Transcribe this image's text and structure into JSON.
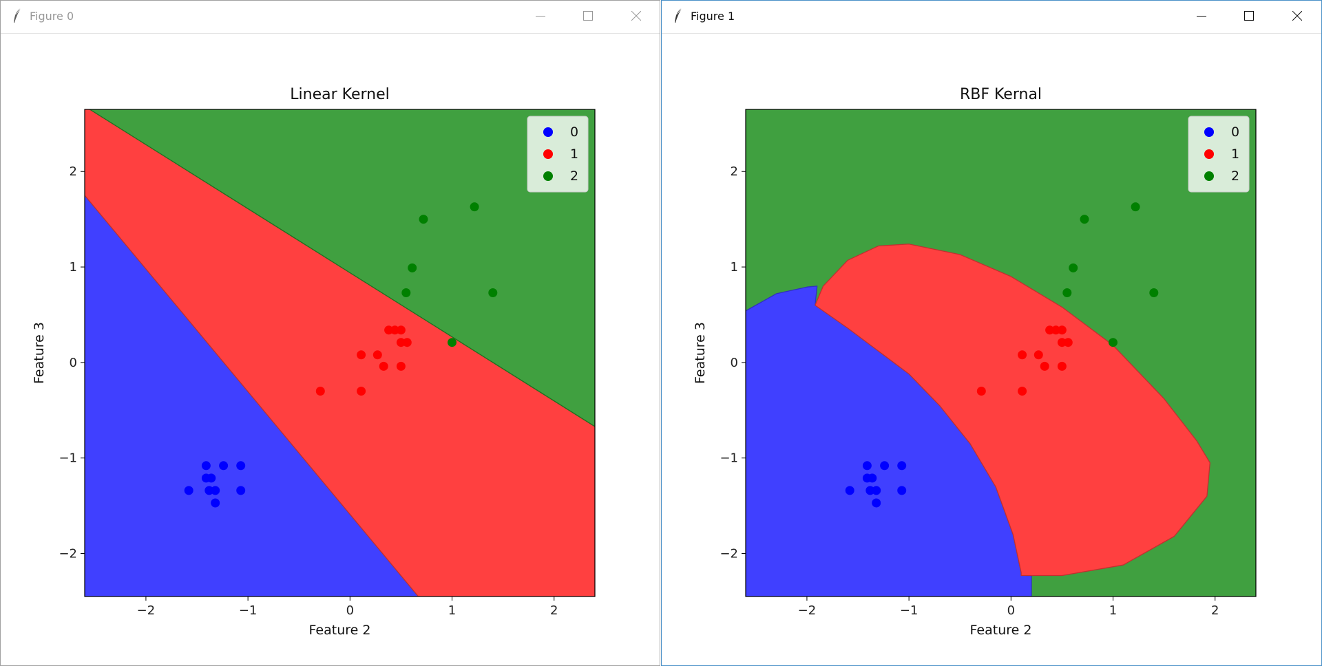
{
  "windows": [
    {
      "title": "Figure 0",
      "active": false,
      "chart_data": {
        "type": "scatter",
        "title": "Linear Kernel",
        "xlabel": "Feature 2",
        "ylabel": "Feature 3",
        "xlim": [
          -2.6,
          2.4
        ],
        "ylim": [
          -2.45,
          2.65
        ],
        "xticks": [
          -2,
          -1,
          0,
          1,
          2
        ],
        "yticks": [
          -2,
          -1,
          0,
          1,
          2
        ],
        "xtick_labels": [
          "−2",
          "−1",
          "0",
          "1",
          "2"
        ],
        "ytick_labels": [
          "−2",
          "−1",
          "0",
          "1",
          "2"
        ],
        "legend_position": "top-right",
        "regions": [
          {
            "class": "0",
            "color": "#4040ff",
            "polygon": [
              [
                -2.6,
                1.75
              ],
              [
                0.67,
                -2.45
              ],
              [
                -2.6,
                -2.45
              ]
            ]
          },
          {
            "class": "1",
            "color": "#ff4040",
            "polygon": [
              [
                -2.6,
                2.65
              ],
              [
                -2.55,
                2.65
              ],
              [
                2.4,
                -0.67
              ],
              [
                2.4,
                -2.45
              ],
              [
                0.67,
                -2.45
              ],
              [
                -2.6,
                1.75
              ]
            ]
          },
          {
            "class": "2",
            "color": "#40a040",
            "polygon": [
              [
                -2.55,
                2.65
              ],
              [
                2.4,
                2.65
              ],
              [
                2.4,
                -0.67
              ]
            ]
          }
        ],
        "series": [
          {
            "name": "0",
            "color": "#0000ff",
            "points": [
              [
                -1.41,
                -1.08
              ],
              [
                -1.24,
                -1.08
              ],
              [
                -1.07,
                -1.08
              ],
              [
                -1.41,
                -1.21
              ],
              [
                -1.36,
                -1.21
              ],
              [
                -1.58,
                -1.34
              ],
              [
                -1.38,
                -1.34
              ],
              [
                -1.32,
                -1.34
              ],
              [
                -1.07,
                -1.34
              ],
              [
                -1.32,
                -1.47
              ]
            ]
          },
          {
            "name": "1",
            "color": "#ff0000",
            "points": [
              [
                0.38,
                0.34
              ],
              [
                0.44,
                0.34
              ],
              [
                0.5,
                0.34
              ],
              [
                0.5,
                0.21
              ],
              [
                0.56,
                0.21
              ],
              [
                0.11,
                0.08
              ],
              [
                0.27,
                0.08
              ],
              [
                0.33,
                -0.04
              ],
              [
                0.5,
                -0.04
              ],
              [
                -0.29,
                -0.3
              ],
              [
                0.11,
                -0.3
              ]
            ]
          },
          {
            "name": "2",
            "color": "#008000",
            "points": [
              [
                1.22,
                1.63
              ],
              [
                0.72,
                1.5
              ],
              [
                0.61,
                0.99
              ],
              [
                0.55,
                0.73
              ],
              [
                1.4,
                0.73
              ],
              [
                1.0,
                0.21
              ]
            ]
          }
        ]
      }
    },
    {
      "title": "Figure 1",
      "active": true,
      "chart_data": {
        "type": "scatter",
        "title": "RBF Kernal",
        "xlabel": "Feature 2",
        "ylabel": "Feature 3",
        "xlim": [
          -2.6,
          2.4
        ],
        "ylim": [
          -2.45,
          2.65
        ],
        "xticks": [
          -2,
          -1,
          0,
          1,
          2
        ],
        "yticks": [
          -2,
          -1,
          0,
          1,
          2
        ],
        "xtick_labels": [
          "−2",
          "−1",
          "0",
          "1",
          "2"
        ],
        "ytick_labels": [
          "−2",
          "−1",
          "0",
          "1",
          "2"
        ],
        "legend_position": "top-right",
        "regions": [
          {
            "class": "2",
            "color": "#40a040",
            "polygon": [
              [
                -2.6,
                2.65
              ],
              [
                2.4,
                2.65
              ],
              [
                2.4,
                -2.45
              ],
              [
                -2.6,
                -2.45
              ]
            ]
          },
          {
            "class": "0",
            "color": "#4040ff",
            "polygon": [
              [
                -2.6,
                0.54
              ],
              [
                -2.3,
                0.72
              ],
              [
                -2.0,
                0.79
              ],
              [
                -1.9,
                0.8
              ],
              [
                -1.92,
                0.6
              ],
              [
                -1.6,
                0.36
              ],
              [
                -1.3,
                0.12
              ],
              [
                -1.0,
                -0.12
              ],
              [
                -0.7,
                -0.45
              ],
              [
                -0.4,
                -0.85
              ],
              [
                -0.15,
                -1.3
              ],
              [
                0.02,
                -1.8
              ],
              [
                0.1,
                -2.2
              ],
              [
                0.15,
                -2.23
              ],
              [
                0.2,
                -2.23
              ],
              [
                0.2,
                -2.45
              ],
              [
                -2.6,
                -2.45
              ]
            ]
          },
          {
            "class": "1",
            "color": "#ff4040",
            "polygon": [
              [
                -1.92,
                0.6
              ],
              [
                -1.84,
                0.8
              ],
              [
                -1.6,
                1.07
              ],
              [
                -1.3,
                1.22
              ],
              [
                -1.0,
                1.24
              ],
              [
                -0.5,
                1.13
              ],
              [
                0.0,
                0.9
              ],
              [
                0.5,
                0.58
              ],
              [
                1.0,
                0.18
              ],
              [
                1.5,
                -0.38
              ],
              [
                1.82,
                -0.82
              ],
              [
                1.95,
                -1.05
              ],
              [
                1.92,
                -1.4
              ],
              [
                1.6,
                -1.82
              ],
              [
                1.1,
                -2.12
              ],
              [
                0.5,
                -2.23
              ],
              [
                0.1,
                -2.23
              ],
              [
                0.1,
                -2.2
              ],
              [
                0.02,
                -1.8
              ],
              [
                -0.15,
                -1.3
              ],
              [
                -0.4,
                -0.85
              ],
              [
                -0.7,
                -0.45
              ],
              [
                -1.0,
                -0.12
              ],
              [
                -1.3,
                0.12
              ],
              [
                -1.6,
                0.36
              ]
            ]
          }
        ],
        "series": [
          {
            "name": "0",
            "color": "#0000ff",
            "points": [
              [
                -1.41,
                -1.08
              ],
              [
                -1.24,
                -1.08
              ],
              [
                -1.07,
                -1.08
              ],
              [
                -1.41,
                -1.21
              ],
              [
                -1.36,
                -1.21
              ],
              [
                -1.58,
                -1.34
              ],
              [
                -1.38,
                -1.34
              ],
              [
                -1.32,
                -1.34
              ],
              [
                -1.07,
                -1.34
              ],
              [
                -1.32,
                -1.47
              ]
            ]
          },
          {
            "name": "1",
            "color": "#ff0000",
            "points": [
              [
                0.38,
                0.34
              ],
              [
                0.44,
                0.34
              ],
              [
                0.5,
                0.34
              ],
              [
                0.5,
                0.21
              ],
              [
                0.56,
                0.21
              ],
              [
                0.11,
                0.08
              ],
              [
                0.27,
                0.08
              ],
              [
                0.33,
                -0.04
              ],
              [
                0.5,
                -0.04
              ],
              [
                -0.29,
                -0.3
              ],
              [
                0.11,
                -0.3
              ]
            ]
          },
          {
            "name": "2",
            "color": "#008000",
            "points": [
              [
                1.22,
                1.63
              ],
              [
                0.72,
                1.5
              ],
              [
                0.61,
                0.99
              ],
              [
                0.55,
                0.73
              ],
              [
                1.4,
                0.73
              ],
              [
                1.0,
                0.21
              ]
            ]
          }
        ]
      }
    }
  ]
}
